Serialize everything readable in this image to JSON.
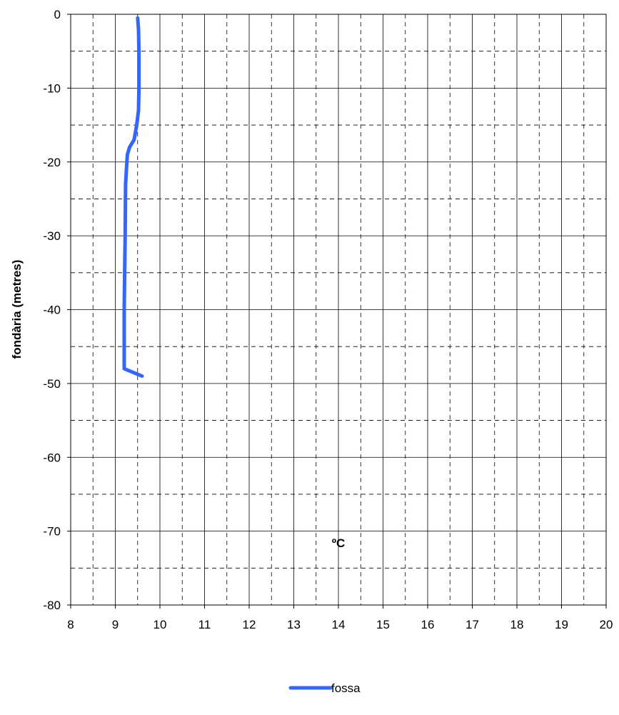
{
  "chart_data": {
    "type": "line",
    "title": "",
    "xlabel": "ºC",
    "ylabel": "fondària (metres)",
    "xlim": [
      8,
      20
    ],
    "ylim": [
      -80,
      0
    ],
    "x_major_step": 1,
    "y_major_step": 10,
    "x_ticks": [
      "8",
      "9",
      "10",
      "11",
      "12",
      "13",
      "14",
      "15",
      "16",
      "17",
      "18",
      "19",
      "20"
    ],
    "y_ticks": [
      "0",
      "-10",
      "-20",
      "-30",
      "-40",
      "-50",
      "-60",
      "-70",
      "-80"
    ],
    "grid": true,
    "legend_position": "bottom",
    "series": [
      {
        "name": "fossa",
        "color": "#3366ff",
        "points": [
          {
            "x": 9.5,
            "y": -0.5
          },
          {
            "x": 9.52,
            "y": -2
          },
          {
            "x": 9.53,
            "y": -5
          },
          {
            "x": 9.53,
            "y": -10
          },
          {
            "x": 9.52,
            "y": -13
          },
          {
            "x": 9.48,
            "y": -15
          },
          {
            "x": 9.42,
            "y": -17
          },
          {
            "x": 9.32,
            "y": -18
          },
          {
            "x": 9.27,
            "y": -19
          },
          {
            "x": 9.25,
            "y": -21
          },
          {
            "x": 9.23,
            "y": -23
          },
          {
            "x": 9.22,
            "y": -30
          },
          {
            "x": 9.21,
            "y": -35
          },
          {
            "x": 9.2,
            "y": -40
          },
          {
            "x": 9.2,
            "y": -45
          },
          {
            "x": 9.2,
            "y": -48
          },
          {
            "x": 9.6,
            "y": -49
          }
        ]
      }
    ]
  }
}
